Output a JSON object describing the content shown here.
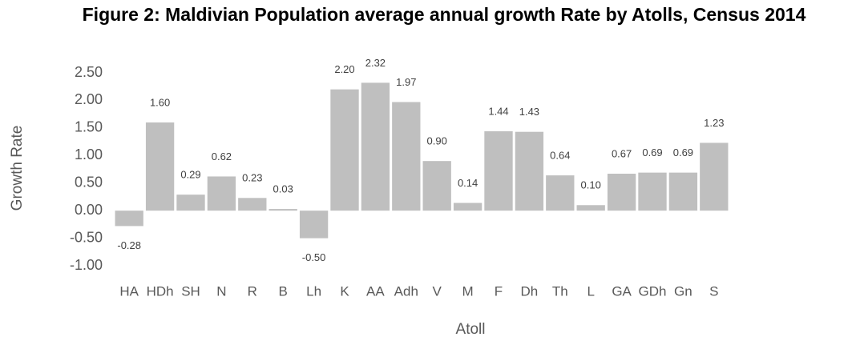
{
  "chart_data": {
    "type": "bar",
    "title": "Figure 2: Maldivian Population average annual growth Rate by Atolls, Census 2014",
    "x_label": "Atoll",
    "y_label": "Growth Rate",
    "categories": [
      "HA",
      "HDh",
      "SH",
      "N",
      "R",
      "B",
      "Lh",
      "K",
      "AA",
      "Adh",
      "V",
      "M",
      "F",
      "Dh",
      "Th",
      "L",
      "GA",
      "GDh",
      "Gn",
      "S"
    ],
    "values": [
      -0.28,
      1.6,
      0.29,
      0.62,
      0.23,
      0.03,
      -0.5,
      2.2,
      2.32,
      1.97,
      0.9,
      0.14,
      1.44,
      1.43,
      0.64,
      0.1,
      0.67,
      0.69,
      0.69,
      1.23
    ],
    "value_labels": [
      "-0.28",
      "1.60",
      "0.29",
      "0.62",
      "0.23",
      "0.03",
      "-0.50",
      "2.20",
      "2.32",
      "1.97",
      "0.90",
      "0.14",
      "1.44",
      "1.43",
      "0.64",
      "0.10",
      "0.67",
      "0.69",
      "0.69",
      "1.23"
    ],
    "color": "#bfbfbf",
    "ylim": [
      -1,
      2.5
    ],
    "yticks": [
      {
        "value": -1,
        "label": "-1.00"
      },
      {
        "value": -0.5,
        "label": "-0.50"
      },
      {
        "value": 0,
        "label": "0.00"
      },
      {
        "value": 0.5,
        "label": "0.50"
      },
      {
        "value": 1,
        "label": "1.00"
      },
      {
        "value": 1.5,
        "label": "1.50"
      },
      {
        "value": 2,
        "label": "2.00"
      },
      {
        "value": 2.5,
        "label": "2.50"
      }
    ],
    "grid": false
  }
}
